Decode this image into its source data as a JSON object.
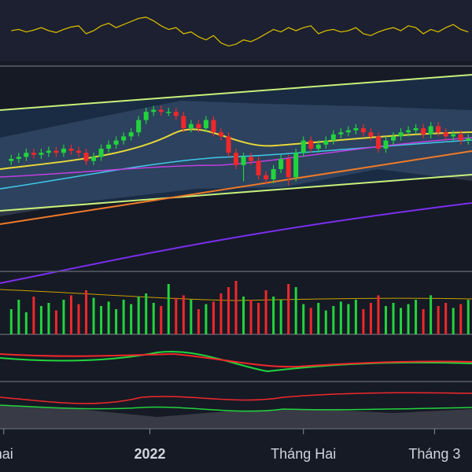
{
  "chart_data": {
    "type": "candlestick",
    "up_color": "#22d43c",
    "down_color": "#f0282a",
    "oscillator_color": "#d4b800",
    "xlim": [
      -1.5,
      61.5
    ],
    "ylim": [
      0,
      100
    ],
    "volume_ylim": [
      0,
      100
    ],
    "oscillator_ylim": [
      0,
      100
    ],
    "xticks": [
      {
        "value": -1,
        "label": "hai"
      },
      {
        "value": 18.5,
        "label": "2022"
      },
      {
        "value": 39,
        "label": "Tháng Hai"
      },
      {
        "value": 56.5,
        "label": "Tháng 3"
      }
    ],
    "open": [
      54,
      55,
      56,
      58,
      57,
      58,
      59,
      58,
      60,
      59,
      58,
      54,
      56,
      60,
      62,
      64,
      66,
      68,
      74,
      78,
      79,
      78,
      78,
      76,
      70,
      72,
      70,
      74,
      68,
      66,
      58,
      52,
      56,
      54,
      47,
      45,
      50,
      55,
      46,
      58,
      64,
      60,
      62,
      64,
      67,
      68,
      69,
      70,
      68,
      66,
      60,
      64,
      66,
      68,
      69,
      70,
      67,
      71,
      68,
      66,
      67,
      64
    ],
    "high": [
      57,
      58,
      60,
      60,
      60,
      61,
      61,
      62,
      62,
      61,
      60,
      58,
      62,
      64,
      66,
      68,
      70,
      76,
      80,
      81,
      81,
      80,
      80,
      78,
      74,
      74,
      76,
      76,
      70,
      68,
      60,
      58,
      58,
      56,
      49,
      52,
      57,
      57,
      60,
      66,
      66,
      64,
      66,
      69,
      70,
      71,
      72,
      72,
      70,
      68,
      66,
      68,
      70,
      71,
      72,
      72,
      73,
      73,
      70,
      69,
      69,
      67
    ],
    "low": [
      52,
      53,
      54,
      55,
      55,
      56,
      56,
      56,
      57,
      56,
      52,
      52,
      54,
      58,
      60,
      62,
      64,
      66,
      72,
      76,
      76,
      76,
      74,
      68,
      68,
      68,
      68,
      66,
      64,
      56,
      50,
      44,
      52,
      45,
      43,
      43,
      48,
      42,
      44,
      56,
      58,
      58,
      60,
      62,
      65,
      66,
      67,
      66,
      64,
      58,
      58,
      62,
      64,
      66,
      67,
      65,
      65,
      66,
      64,
      64,
      62,
      62
    ],
    "close": [
      55,
      56,
      58,
      57,
      58,
      59,
      58,
      60,
      59,
      58,
      54,
      56,
      60,
      62,
      64,
      66,
      68,
      74,
      78,
      79,
      78,
      78,
      76,
      70,
      72,
      70,
      74,
      68,
      66,
      58,
      52,
      56,
      54,
      47,
      45,
      50,
      55,
      46,
      58,
      64,
      60,
      62,
      64,
      67,
      68,
      69,
      70,
      68,
      66,
      60,
      64,
      66,
      68,
      69,
      70,
      67,
      71,
      68,
      66,
      67,
      64,
      65
    ],
    "volume": [
      40,
      55,
      35,
      60,
      45,
      50,
      38,
      55,
      62,
      48,
      70,
      58,
      45,
      52,
      40,
      55,
      48,
      60,
      65,
      50,
      45,
      80,
      58,
      62,
      55,
      40,
      48,
      52,
      65,
      75,
      85,
      60,
      55,
      50,
      70,
      60,
      55,
      80,
      75,
      48,
      42,
      50,
      38,
      45,
      52,
      48,
      55,
      40,
      50,
      62,
      45,
      50,
      42,
      48,
      55,
      40,
      62,
      45,
      50,
      42,
      48,
      55
    ],
    "oscillator": [
      50,
      52,
      48,
      51,
      55,
      50,
      47,
      52,
      56,
      58,
      45,
      50,
      58,
      62,
      55,
      60,
      65,
      70,
      72,
      66,
      58,
      52,
      55,
      45,
      48,
      40,
      35,
      42,
      30,
      25,
      28,
      35,
      32,
      38,
      45,
      52,
      48,
      55,
      50,
      55,
      58,
      45,
      50,
      52,
      48,
      50,
      55,
      45,
      42,
      48,
      52,
      55,
      50,
      58,
      55,
      45,
      52,
      48,
      55,
      60,
      52,
      48
    ]
  }
}
